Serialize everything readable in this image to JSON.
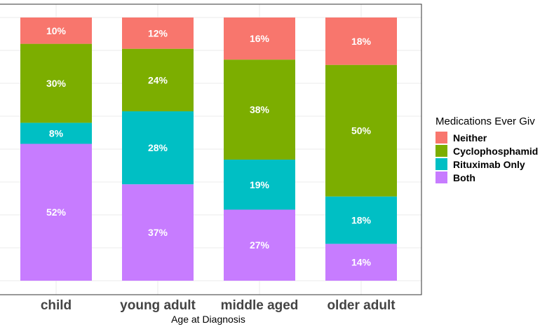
{
  "chart_data": {
    "type": "bar",
    "stacked": true,
    "percent": true,
    "xlabel": "Age at Diagnosis",
    "ylabel": "",
    "ylim": [
      0,
      100
    ],
    "grid": true,
    "legend_position": "right",
    "legend_title": "Medications Ever Giv",
    "categories": [
      "child",
      "young adult",
      "middle aged",
      "older adult"
    ],
    "series": [
      {
        "name": "Neither",
        "color": "#F8766D",
        "values": [
          10,
          12,
          16,
          18
        ],
        "labels": [
          "10%",
          "12%",
          "16%",
          "18%"
        ]
      },
      {
        "name": "Cyclophosphamid",
        "color": "#7CAE00",
        "values": [
          30,
          24,
          38,
          50
        ],
        "labels": [
          "30%",
          "24%",
          "38%",
          "50%"
        ]
      },
      {
        "name": "Rituximab Only",
        "color": "#00BFC4",
        "values": [
          8,
          28,
          19,
          18
        ],
        "labels": [
          "8%",
          "28%",
          "19%",
          "18%"
        ]
      },
      {
        "name": "Both",
        "color": "#C77CFF",
        "values": [
          52,
          37,
          27,
          14
        ],
        "labels": [
          "52%",
          "37%",
          "27%",
          "14%"
        ]
      }
    ]
  }
}
